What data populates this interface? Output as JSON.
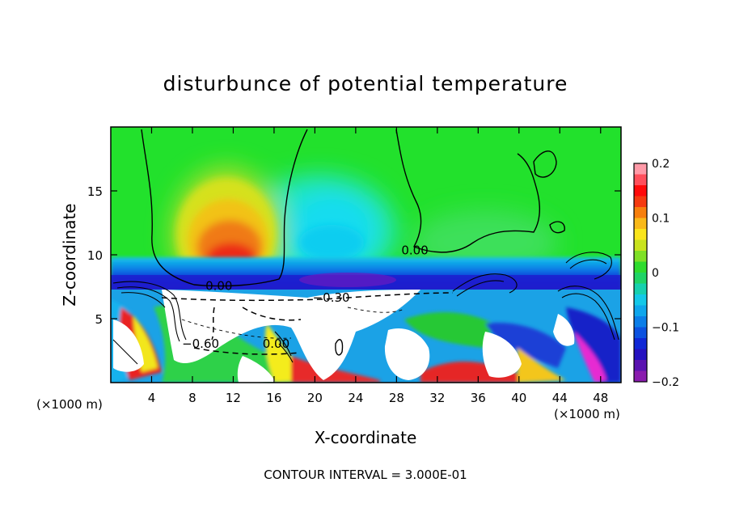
{
  "chart_data": {
    "type": "heatmap",
    "title": "disturbunce of potential temperature",
    "xlabel": "X-coordinate",
    "ylabel": "Z-coordinate",
    "x_unit": "(×1000 m)",
    "y_unit": "(×1000 m)",
    "xlim": [
      0,
      50
    ],
    "ylim": [
      0,
      20
    ],
    "x_ticks": [
      4,
      8,
      12,
      16,
      20,
      24,
      28,
      32,
      36,
      40,
      44,
      48
    ],
    "y_ticks": [
      5,
      10,
      15
    ],
    "colorbar": {
      "range": [
        -0.2,
        0.2
      ],
      "ticks": [
        0.2,
        0.1,
        0,
        -0.1,
        -0.2
      ],
      "tick_labels": [
        "0.2",
        "0.1",
        "0",
        "−0.1",
        "−0.2"
      ]
    },
    "contour_labels": [
      {
        "text": "0.00",
        "x": 29.8,
        "y": 10.1
      },
      {
        "text": "0.00",
        "x": 10.6,
        "y": 7.3
      },
      {
        "text": "−0.30",
        "x": 21.6,
        "y": 6.4
      },
      {
        "text": "−0.60",
        "x": 8.8,
        "y": 2.8
      },
      {
        "text": "0.00",
        "x": 16.2,
        "y": 2.8
      }
    ],
    "footer": "CONTOUR INTERVAL = 3.000E-01"
  }
}
